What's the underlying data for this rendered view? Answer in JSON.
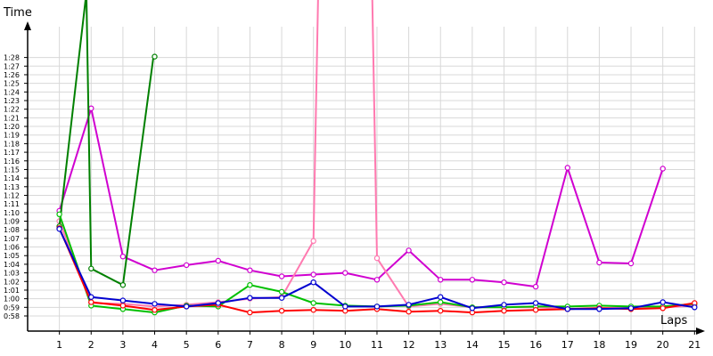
{
  "chart_data": {
    "type": "line",
    "xlabel": "Laps",
    "ylabel": "Time",
    "x": [
      1,
      2,
      3,
      4,
      5,
      6,
      7,
      8,
      9,
      10,
      11,
      12,
      13,
      14,
      15,
      16,
      17,
      18,
      19,
      20,
      21
    ],
    "y_tick_labels": [
      "0:58",
      "0:59",
      "1:00",
      "1:01",
      "1:02",
      "1:03",
      "1:04",
      "1:05",
      "1:06",
      "1:07",
      "1:08",
      "1:09",
      "1:10",
      "1:11",
      "1:12",
      "1:13",
      "1:14",
      "1:15",
      "1:16",
      "1:17",
      "1:18",
      "1:19",
      "1:20",
      "1:21",
      "1:22",
      "1:23",
      "1:24",
      "1:25",
      "1:26",
      "1:27",
      "1:28"
    ],
    "ylim_seconds": [
      57,
      93
    ],
    "xlim": [
      0,
      21.3
    ],
    "grid": true,
    "y_unit": "m:ss",
    "series": [
      {
        "color": "#d000d0",
        "x": [
          1,
          2,
          3,
          4,
          5,
          6,
          7,
          8,
          9,
          10,
          11,
          12,
          13,
          14,
          15,
          16,
          17,
          18,
          19,
          20
        ],
        "y": [
          70.2,
          82.1,
          64.9,
          63.3,
          63.9,
          64.4,
          63.3,
          62.6,
          62.8,
          63.0,
          62.2,
          65.6,
          62.2,
          62.2,
          61.9,
          61.4,
          75.2,
          64.2,
          64.1,
          75.1
        ]
      },
      {
        "color": "#ff7ab0",
        "x": [
          1,
          2,
          3,
          4,
          5,
          6,
          7,
          8,
          9,
          9.15,
          10.85,
          11,
          12,
          13,
          14,
          15,
          16,
          17,
          18,
          19,
          20,
          21
        ],
        "y": [
          69.0,
          59.5,
          59.4,
          59.1,
          59.3,
          59.6,
          60.0,
          60.2,
          66.7,
          93.0,
          93.0,
          64.7,
          59.1,
          59.4,
          59.0,
          59.0,
          59.0,
          58.8,
          58.9,
          59.0,
          59.0,
          59.2
        ]
      },
      {
        "color": "#008000",
        "x": [
          1,
          1.85,
          2,
          3,
          3.95,
          4
        ],
        "y": [
          68.4,
          93.0,
          63.5,
          61.6,
          87.8,
          88.1
        ]
      },
      {
        "color": "#00c000",
        "x": [
          1,
          2,
          3,
          4,
          5,
          6,
          7,
          8,
          9,
          10,
          11,
          12,
          13,
          14,
          15,
          16,
          17,
          18,
          19,
          20,
          21
        ],
        "y": [
          69.8,
          59.2,
          58.8,
          58.4,
          59.2,
          59.1,
          61.6,
          60.8,
          59.5,
          59.2,
          59.1,
          59.2,
          59.6,
          59.0,
          59.0,
          59.1,
          59.1,
          59.2,
          59.1,
          59.1,
          59.4
        ]
      },
      {
        "color": "#ff0000",
        "x": [
          1,
          2,
          3,
          4,
          5,
          6,
          7,
          8,
          9,
          10,
          11,
          12,
          13,
          14,
          15,
          16,
          17,
          18,
          19,
          20,
          21
        ],
        "y": [
          68.2,
          59.6,
          59.2,
          58.7,
          59.1,
          59.3,
          58.4,
          58.6,
          58.7,
          58.6,
          58.8,
          58.5,
          58.6,
          58.4,
          58.6,
          58.7,
          58.8,
          58.9,
          58.8,
          58.9,
          59.5
        ]
      },
      {
        "color": "#0000d0",
        "x": [
          1,
          2,
          3,
          4,
          5,
          6,
          7,
          8,
          9,
          10,
          11,
          12,
          13,
          14,
          15,
          16,
          17,
          18,
          19,
          20,
          21
        ],
        "y": [
          68.1,
          60.2,
          59.8,
          59.4,
          59.1,
          59.5,
          60.1,
          60.1,
          61.9,
          59.1,
          59.1,
          59.3,
          60.2,
          58.9,
          59.3,
          59.5,
          58.8,
          58.8,
          58.9,
          59.6,
          59.0
        ]
      }
    ]
  }
}
